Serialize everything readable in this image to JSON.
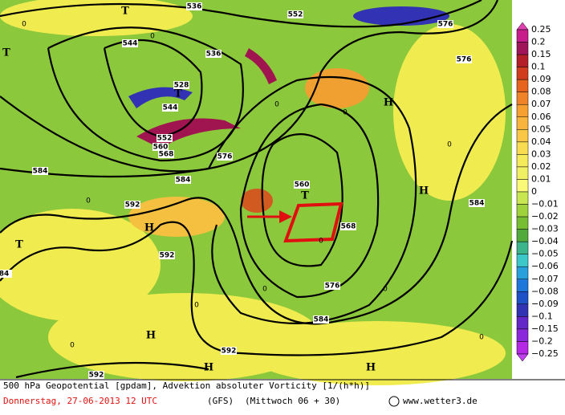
{
  "map": {
    "contour_labels": [
      "536",
      "552",
      "576",
      "544",
      "536",
      "528",
      "544",
      "552",
      "560",
      "568",
      "576",
      "584",
      "584",
      "592",
      "560",
      "568",
      "576",
      "584",
      "592",
      "592",
      "592",
      "84",
      "584",
      "576"
    ],
    "centers": [
      "T",
      "T",
      "T",
      "T",
      "H",
      "H",
      "H",
      "H",
      "H",
      "H",
      "T"
    ],
    "zero_labels": [
      "0",
      "0",
      "0",
      "0",
      "0",
      "0",
      "0",
      "0",
      "0",
      "0",
      "0",
      "0"
    ]
  },
  "colorbar": {
    "labels": [
      "0.25",
      "0.2",
      "0.15",
      "0.1",
      "0.09",
      "0.08",
      "0.07",
      "0.06",
      "0.05",
      "0.04",
      "0.03",
      "0.02",
      "0.01",
      "0",
      "−0.01",
      "−0.02",
      "−0.03",
      "−0.04",
      "−0.05",
      "−0.06",
      "−0.07",
      "−0.08",
      "−0.09",
      "−0.1",
      "−0.15",
      "−0.2",
      "−0.25"
    ],
    "colors": [
      "#c81e8c",
      "#a0145a",
      "#b41e28",
      "#d23c1e",
      "#e6641e",
      "#f08228",
      "#f5a030",
      "#f8b43c",
      "#fac846",
      "#fadc50",
      "#f5eb5a",
      "#f0f064",
      "#fafa78",
      "#c8e650",
      "#a0d23c",
      "#78be32",
      "#50aa3c",
      "#3cb48c",
      "#3cc8c8",
      "#28a0dc",
      "#1e78dc",
      "#1e50c8",
      "#3232b4",
      "#6428c8",
      "#8c28dc",
      "#b428e6"
    ],
    "top_color": "#e040b0",
    "bottom_color": "#c040f0"
  },
  "footer": {
    "line1": "500 hPa Geopotential [gpdam], Advektion absoluter Vorticity [1/(h*h)]",
    "date": "Donnerstag, 27-06-2013  12 UTC",
    "model": "(GFS)",
    "run": "(Mittwoch 06 + 30)",
    "site": "www.wetter3.de"
  }
}
